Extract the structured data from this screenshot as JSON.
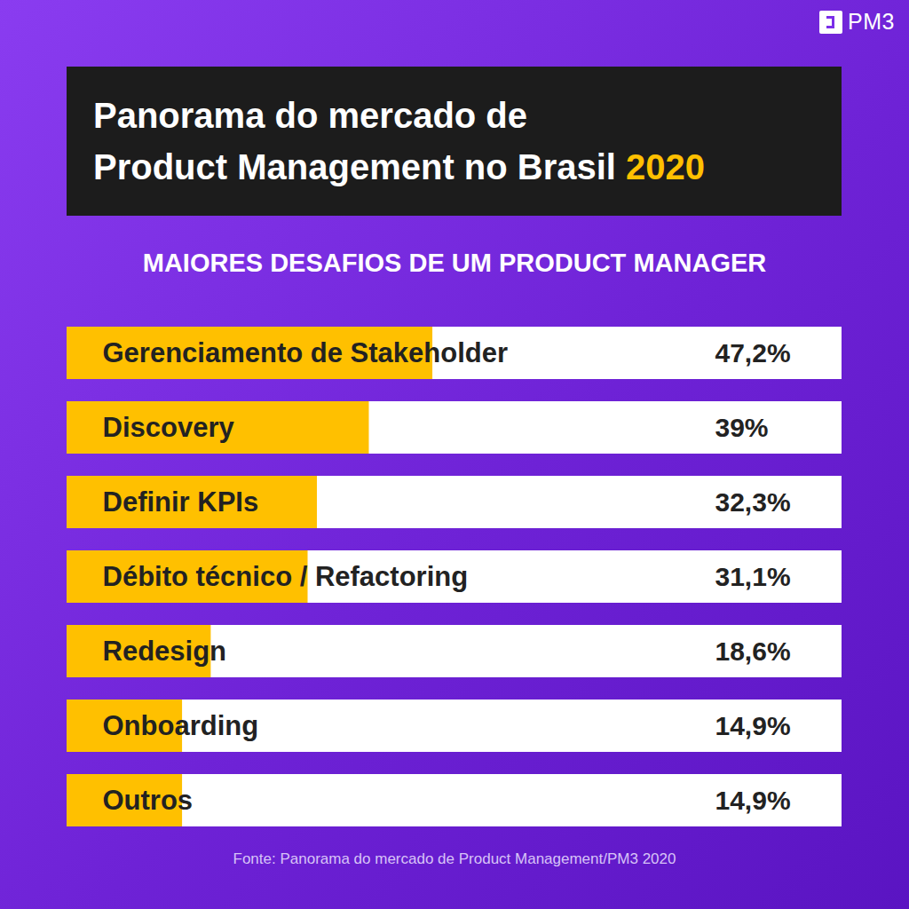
{
  "chart_data": {
    "type": "bar",
    "orientation": "horizontal",
    "title": "Panorama do mercado de Product Management no Brasil 2020",
    "subtitle": "MAIORES DESAFIOS DE UM PRODUCT MANAGER",
    "caption": "Fonte: Panorama do mercado de Product Management/PM3 2020",
    "annotations": [
      "PM3"
    ],
    "categories": [
      "Gerenciamento de Stakeholder",
      "Discovery",
      "Definir KPIs",
      "Débito técnico / Refactoring",
      "Redesign",
      "Onboarding",
      "Outros"
    ],
    "values": [
      47.2,
      39,
      32.3,
      31.1,
      18.6,
      14.9,
      14.9
    ],
    "value_labels": [
      "47,2%",
      "39%",
      "32,3%",
      "31,1%",
      "18,6%",
      "14,9%",
      "14,9%"
    ],
    "color": "#ffc000",
    "xlim": [
      0,
      100
    ],
    "tick_labels": false,
    "data_labels": true,
    "grid": false
  }
}
